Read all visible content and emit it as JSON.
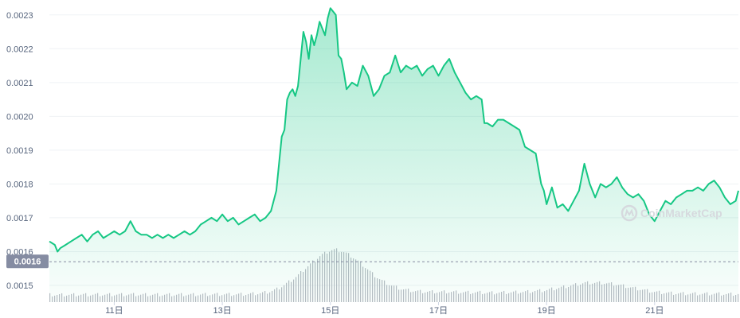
{
  "chart_data": {
    "type": "area",
    "title": "",
    "xlabel": "",
    "ylabel": "",
    "ylim": [
      0.00146,
      0.00233
    ],
    "y_ticks": [
      "0.0023",
      "0.0022",
      "0.0021",
      "0.0020",
      "0.0019",
      "0.0018",
      "0.0017",
      "0.0016",
      "0.0015"
    ],
    "x_ticks": [
      "11日",
      "13日",
      "15日",
      "17日",
      "19日",
      "21日"
    ],
    "x_tick_days": [
      11,
      13,
      15,
      17,
      19,
      21
    ],
    "x_range_days": [
      9.8,
      22.55
    ],
    "current_price_label": "0.0016",
    "current_price": 0.00157,
    "grid": true,
    "legend": "none",
    "watermark": "CoinMarketCap",
    "colors": {
      "line": "#16c784",
      "fill": "#16c784",
      "volume": "#b8bcc4",
      "current_label_bg": "#858ca2"
    },
    "series": [
      {
        "x_days": [
          9.8,
          9.9,
          9.95,
          10.0,
          10.1,
          10.2,
          10.3,
          10.4,
          10.5,
          10.6,
          10.7,
          10.8,
          10.9,
          11.0,
          11.1,
          11.2,
          11.3,
          11.4,
          11.5,
          11.6,
          11.7,
          11.8,
          11.9,
          12.0,
          12.1,
          12.2,
          12.3,
          12.4,
          12.5,
          12.6,
          12.7,
          12.8,
          12.9,
          13.0,
          13.1,
          13.2,
          13.3,
          13.4,
          13.5,
          13.6,
          13.7,
          13.8,
          13.9,
          14.0,
          14.1,
          14.15,
          14.2,
          14.25,
          14.3,
          14.35,
          14.4,
          14.5,
          14.55,
          14.6,
          14.65,
          14.7,
          14.75,
          14.8,
          14.85,
          14.9,
          14.95,
          15.0,
          15.05,
          15.1,
          15.15,
          15.2,
          15.25,
          15.3,
          15.4,
          15.5,
          15.6,
          15.7,
          15.8,
          15.9,
          16.0,
          16.1,
          16.2,
          16.3,
          16.4,
          16.5,
          16.6,
          16.7,
          16.8,
          16.9,
          17.0,
          17.1,
          17.2,
          17.3,
          17.4,
          17.5,
          17.6,
          17.7,
          17.8,
          17.85,
          17.9,
          18.0,
          18.1,
          18.2,
          18.3,
          18.4,
          18.5,
          18.6,
          18.7,
          18.8,
          18.9,
          18.95,
          19.0,
          19.1,
          19.2,
          19.3,
          19.4,
          19.5,
          19.6,
          19.7,
          19.8,
          19.9,
          20.0,
          20.1,
          20.2,
          20.3,
          20.4,
          20.5,
          20.6,
          20.7,
          20.8,
          20.9,
          21.0,
          21.1,
          21.2,
          21.3,
          21.4,
          21.5,
          21.6,
          21.7,
          21.8,
          21.9,
          22.0,
          22.1,
          22.2,
          22.3,
          22.4,
          22.5,
          22.55
        ],
        "values": [
          0.00163,
          0.00162,
          0.0016,
          0.00161,
          0.00162,
          0.00163,
          0.00164,
          0.00165,
          0.00163,
          0.00165,
          0.00166,
          0.00164,
          0.00165,
          0.00166,
          0.00165,
          0.00166,
          0.00169,
          0.00166,
          0.00165,
          0.00165,
          0.00164,
          0.00165,
          0.00164,
          0.00165,
          0.00164,
          0.00165,
          0.00166,
          0.00165,
          0.00166,
          0.00168,
          0.00169,
          0.0017,
          0.00169,
          0.00171,
          0.00169,
          0.0017,
          0.00168,
          0.00169,
          0.0017,
          0.00171,
          0.00169,
          0.0017,
          0.00172,
          0.00178,
          0.00194,
          0.00196,
          0.00205,
          0.00207,
          0.00208,
          0.00206,
          0.00209,
          0.00225,
          0.00222,
          0.00217,
          0.00224,
          0.00221,
          0.00224,
          0.00228,
          0.00226,
          0.00224,
          0.00229,
          0.00232,
          0.00231,
          0.0023,
          0.00218,
          0.00217,
          0.00213,
          0.00208,
          0.0021,
          0.00209,
          0.00215,
          0.00212,
          0.00206,
          0.00208,
          0.00212,
          0.00213,
          0.00218,
          0.00213,
          0.00215,
          0.00214,
          0.00215,
          0.00212,
          0.00214,
          0.00215,
          0.00212,
          0.00215,
          0.00217,
          0.00213,
          0.0021,
          0.00207,
          0.00205,
          0.00206,
          0.00205,
          0.00198,
          0.00198,
          0.00197,
          0.00199,
          0.00199,
          0.00198,
          0.00197,
          0.00196,
          0.00191,
          0.0019,
          0.00189,
          0.0018,
          0.00178,
          0.00174,
          0.00179,
          0.00173,
          0.00174,
          0.00172,
          0.00175,
          0.00178,
          0.00186,
          0.0018,
          0.00176,
          0.0018,
          0.00179,
          0.0018,
          0.00182,
          0.00179,
          0.00177,
          0.00176,
          0.00177,
          0.00175,
          0.00171,
          0.00169,
          0.00172,
          0.00175,
          0.00174,
          0.00176,
          0.00177,
          0.00178,
          0.00178,
          0.00179,
          0.00178,
          0.0018,
          0.00181,
          0.00179,
          0.00176,
          0.00174,
          0.00175,
          0.00178
        ]
      }
    ]
  }
}
